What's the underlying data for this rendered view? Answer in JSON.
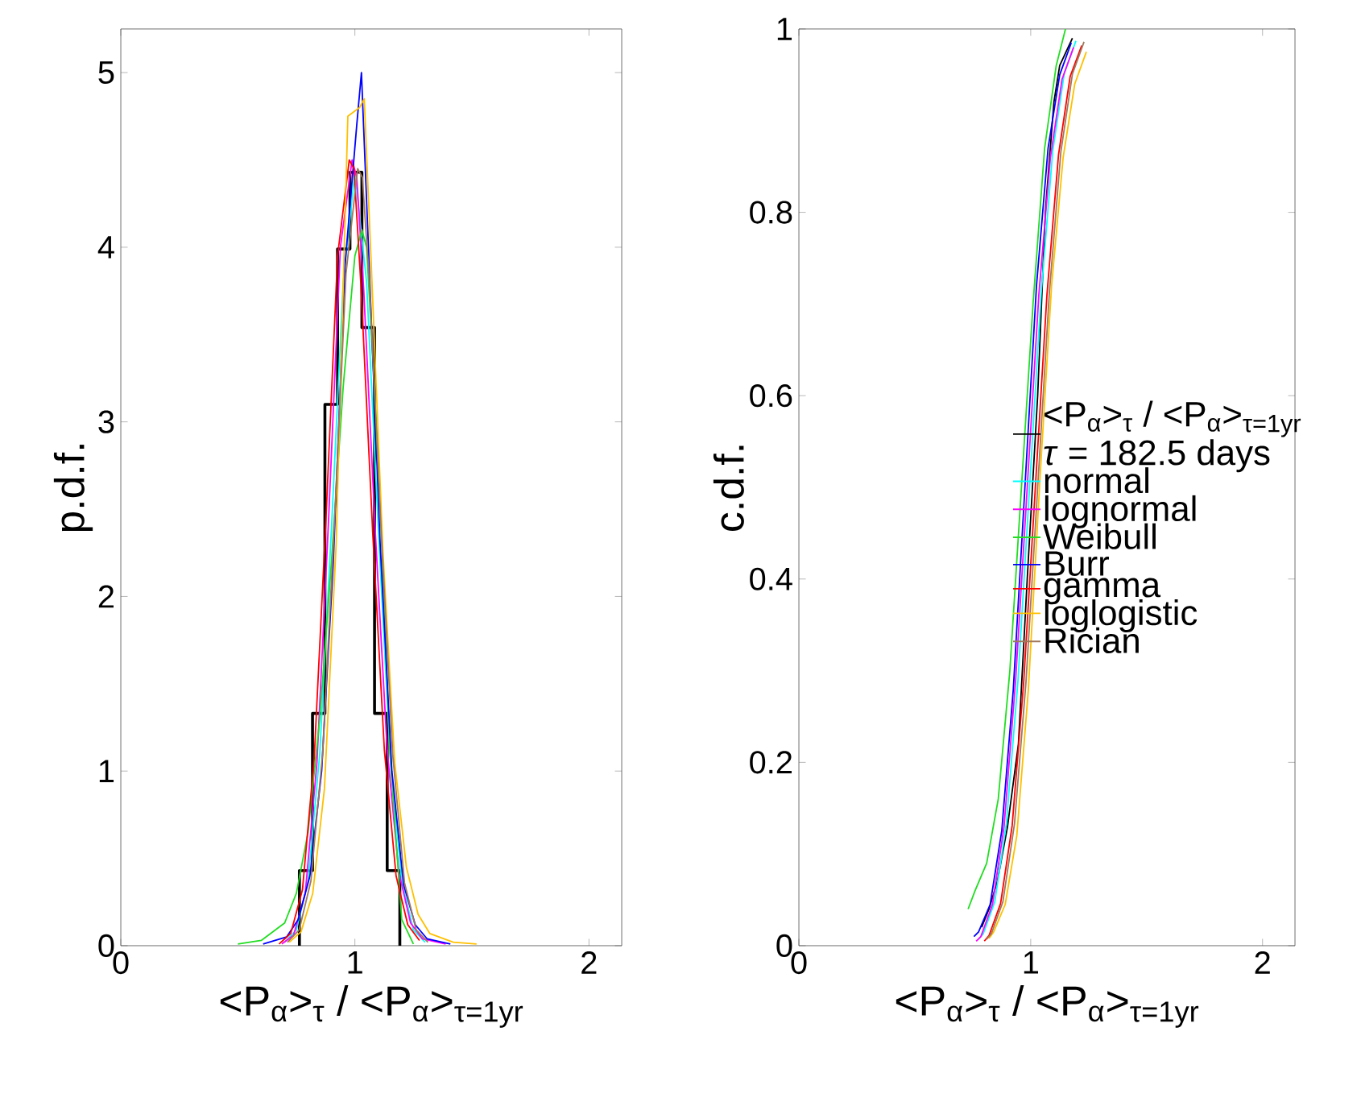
{
  "chart_data": [
    {
      "type": "line",
      "xlabel": "<P$_{α}$>$_{τ}$ / <P$_{α}$>$_{τ=1yr}$",
      "ylabel": "p.d.f.",
      "xlim": [
        0,
        2.14
      ],
      "ylim": [
        0,
        5.25
      ],
      "xticks": [
        0,
        1,
        2
      ],
      "yticks": [
        0,
        1,
        2,
        3,
        4,
        5
      ],
      "series": [
        {
          "type": "histogram",
          "color": "#000000",
          "bins": [
            0.763,
            0.819,
            0.872,
            0.926,
            0.979,
            1.03,
            1.084,
            1.138,
            1.192
          ],
          "values": [
            0.43,
            1.33,
            3.1,
            3.99,
            4.43,
            3.54,
            1.33,
            0.43
          ]
        },
        {
          "color": "#00ffff",
          "x": [
            0.7,
            0.75,
            0.8,
            0.85,
            0.9,
            0.95,
            1.0,
            1.05,
            1.1,
            1.15,
            1.2,
            1.25,
            1.3
          ],
          "values": [
            0.02,
            0.09,
            0.37,
            1.1,
            2.39,
            3.8,
            4.43,
            3.8,
            2.39,
            1.1,
            0.37,
            0.09,
            0.02
          ]
        },
        {
          "color": "#ff00ff",
          "x": [
            0.688,
            0.738,
            0.788,
            0.838,
            0.888,
            0.938,
            0.988,
            1.008,
            1.038,
            1.088,
            1.138,
            1.188,
            1.238,
            1.288,
            1.388
          ],
          "values": [
            0.01,
            0.06,
            0.3,
            1.05,
            2.45,
            4.0,
            4.5,
            4.4,
            3.75,
            2.35,
            1.12,
            0.42,
            0.13,
            0.04,
            0.01
          ]
        },
        {
          "color": "#22dd22",
          "x": [
            0.5,
            0.6,
            0.7,
            0.75,
            0.8,
            0.85,
            0.9,
            0.95,
            1.0,
            1.03,
            1.05,
            1.1,
            1.15,
            1.2,
            1.25
          ],
          "values": [
            0.01,
            0.03,
            0.13,
            0.3,
            0.65,
            1.3,
            2.2,
            3.2,
            3.95,
            4.1,
            4.0,
            2.8,
            1.1,
            0.15,
            0.01
          ]
        },
        {
          "color": "#0000ff",
          "x": [
            0.608,
            0.708,
            0.758,
            0.808,
            0.858,
            0.908,
            0.958,
            1.008,
            1.028,
            1.058,
            1.108,
            1.158,
            1.208,
            1.258,
            1.308,
            1.408
          ],
          "values": [
            0.01,
            0.05,
            0.15,
            0.4,
            1.0,
            2.2,
            3.9,
            4.7,
            5.0,
            4.0,
            2.3,
            1.0,
            0.35,
            0.12,
            0.04,
            0.01
          ]
        },
        {
          "color": "#ff0000",
          "x": [
            0.676,
            0.726,
            0.776,
            0.826,
            0.876,
            0.926,
            0.976,
            0.996,
            1.026,
            1.076,
            1.126,
            1.176,
            1.226,
            1.276
          ],
          "values": [
            0.01,
            0.07,
            0.32,
            1.07,
            2.43,
            3.95,
            4.5,
            4.45,
            3.78,
            2.37,
            1.12,
            0.4,
            0.12,
            0.03
          ]
        },
        {
          "color": "#ffc000",
          "x": [
            0.72,
            0.77,
            0.82,
            0.87,
            0.92,
            0.97,
            1.02,
            1.04,
            1.07,
            1.12,
            1.17,
            1.22,
            1.27,
            1.32,
            1.42,
            1.52
          ],
          "values": [
            0.02,
            0.08,
            0.3,
            0.9,
            2.3,
            4.75,
            4.8,
            4.85,
            3.9,
            2.25,
            1.05,
            0.45,
            0.18,
            0.07,
            0.02,
            0.01
          ]
        },
        {
          "color": "#a0785a",
          "x": [
            0.712,
            0.762,
            0.812,
            0.862,
            0.912,
            0.962,
            1.012,
            1.032,
            1.062,
            1.112,
            1.162,
            1.212,
            1.262,
            1.312
          ],
          "values": [
            0.02,
            0.09,
            0.37,
            1.1,
            2.4,
            3.85,
            4.45,
            4.4,
            3.8,
            2.38,
            1.09,
            0.36,
            0.09,
            0.02
          ]
        }
      ]
    },
    {
      "type": "line",
      "xlabel": "<P$_{α}$>$_{τ}$ / <P$_{α}$>$_{τ=1yr}$",
      "ylabel": "c.d.f.",
      "xlim": [
        0,
        2.14
      ],
      "ylim": [
        0,
        1
      ],
      "xticks": [
        0,
        1,
        2
      ],
      "yticks": [
        0,
        0.2,
        0.4,
        0.6,
        0.8,
        1
      ],
      "legend": "right",
      "annotations": [
        "*τ* = 182.5 days"
      ],
      "series": [
        {
          "name": "<P$_{α}$>$_{τ}$ / <P$_{α}$>$_{τ=1yr}$",
          "color": "#000000",
          "x": [
            0.788,
            0.82,
            0.856,
            0.9,
            0.947,
            0.985,
            1.03,
            1.063,
            1.1,
            1.125,
            1.18
          ],
          "values": [
            0.02,
            0.04,
            0.07,
            0.13,
            0.22,
            0.4,
            0.6,
            0.8,
            0.92,
            0.96,
            0.99
          ]
        },
        {
          "name": "normal",
          "color": "#00ffff",
          "x": [
            0.775,
            0.795,
            0.845,
            0.895,
            0.945,
            0.995,
            1.045,
            1.095,
            1.145,
            1.195
          ],
          "values": [
            0.007,
            0.013,
            0.048,
            0.133,
            0.289,
            0.5,
            0.711,
            0.867,
            0.952,
            0.987
          ]
        },
        {
          "name": "lognormal",
          "color": "#ff00ff",
          "x": [
            0.765,
            0.785,
            0.835,
            0.885,
            0.935,
            0.985,
            1.035,
            1.085,
            1.135,
            1.185
          ],
          "values": [
            0.005,
            0.01,
            0.045,
            0.13,
            0.29,
            0.5,
            0.71,
            0.86,
            0.945,
            0.98
          ]
        },
        {
          "name": "Weibull",
          "color": "#22dd22",
          "x": [
            0.73,
            0.76,
            0.81,
            0.86,
            0.91,
            0.96,
            1.01,
            1.06,
            1.11,
            1.15
          ],
          "values": [
            0.04,
            0.06,
            0.09,
            0.16,
            0.3,
            0.5,
            0.7,
            0.87,
            0.96,
            1.0
          ]
        },
        {
          "name": "Burr",
          "color": "#0000ff",
          "x": [
            0.755,
            0.775,
            0.825,
            0.875,
            0.925,
            0.975,
            1.025,
            1.075,
            1.125,
            1.175
          ],
          "values": [
            0.01,
            0.015,
            0.045,
            0.125,
            0.28,
            0.5,
            0.72,
            0.87,
            0.95,
            0.985
          ]
        },
        {
          "name": "gamma",
          "color": "#ff0000",
          "x": [
            0.8,
            0.82,
            0.87,
            0.92,
            0.97,
            1.02,
            1.07,
            1.12,
            1.17,
            1.22
          ],
          "values": [
            0.005,
            0.011,
            0.046,
            0.131,
            0.289,
            0.5,
            0.71,
            0.863,
            0.948,
            0.982
          ]
        },
        {
          "name": "loglogistic",
          "color": "#ffc000",
          "x": [
            0.82,
            0.84,
            0.89,
            0.94,
            0.99,
            1.04,
            1.09,
            1.14,
            1.19,
            1.24
          ],
          "values": [
            0.008,
            0.015,
            0.045,
            0.12,
            0.28,
            0.51,
            0.72,
            0.86,
            0.94,
            0.975
          ]
        },
        {
          "name": "Rician",
          "color": "#a0785a",
          "x": [
            0.81,
            0.83,
            0.88,
            0.93,
            0.98,
            1.03,
            1.08,
            1.13,
            1.18,
            1.23
          ],
          "values": [
            0.007,
            0.013,
            0.048,
            0.133,
            0.289,
            0.5,
            0.711,
            0.866,
            0.951,
            0.986
          ]
        }
      ]
    }
  ]
}
